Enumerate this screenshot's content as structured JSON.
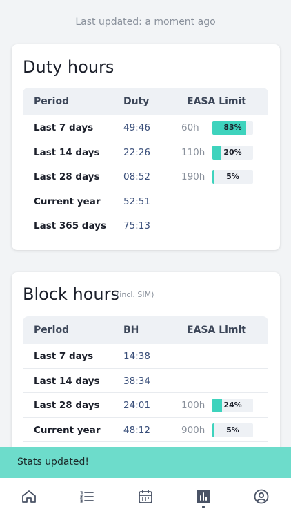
{
  "status": {
    "last_updated": "Last updated: a moment ago"
  },
  "duty_card": {
    "title": "Duty hours",
    "columns": {
      "period": "Period",
      "value": "Duty",
      "limit": "EASA Limit"
    },
    "rows": [
      {
        "period": "Last 7 days",
        "value": "49:46",
        "limit": "60h",
        "percent_label": "83%",
        "percent": 83
      },
      {
        "period": "Last 14 days",
        "value": "22:26",
        "limit": "110h",
        "percent_label": "20%",
        "percent": 20
      },
      {
        "period": "Last 28 days",
        "value": "08:52",
        "limit": "190h",
        "percent_label": "5%",
        "percent": 5
      },
      {
        "period": "Current year",
        "value": "52:51",
        "limit": "",
        "percent_label": "",
        "percent": 0
      },
      {
        "period": "Last 365 days",
        "value": "75:13",
        "limit": "",
        "percent_label": "",
        "percent": 0
      }
    ]
  },
  "block_card": {
    "title": "Block hours",
    "subtitle": "(incl. SIM)",
    "columns": {
      "period": "Period",
      "value": "BH",
      "limit": "EASA Limit"
    },
    "rows": [
      {
        "period": "Last 7 days",
        "value": "14:38",
        "limit": "",
        "percent_label": "",
        "percent": 0
      },
      {
        "period": "Last 14 days",
        "value": "38:34",
        "limit": "",
        "percent_label": "",
        "percent": 0
      },
      {
        "period": "Last 28 days",
        "value": "24:01",
        "limit": "100h",
        "percent_label": "24%",
        "percent": 24
      },
      {
        "period": "Current year",
        "value": "48:12",
        "limit": "900h",
        "percent_label": "5%",
        "percent": 5
      }
    ]
  },
  "toast": {
    "message": "Stats updated!"
  },
  "nav": {
    "items": [
      {
        "icon": "home-icon"
      },
      {
        "icon": "list-icon"
      },
      {
        "icon": "calendar-icon"
      },
      {
        "icon": "stats-icon",
        "active": true
      },
      {
        "icon": "profile-icon"
      }
    ]
  },
  "colors": {
    "accent": "#3ed3bd",
    "toast": "#6ddccb",
    "value_text": "#3a4f7a"
  }
}
